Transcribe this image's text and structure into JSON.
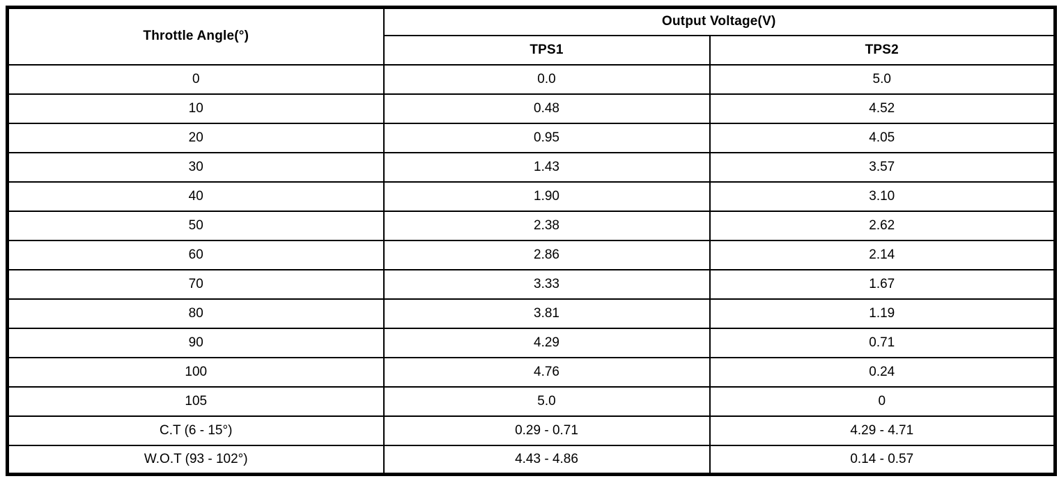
{
  "table": {
    "throttle_angle_header": "Throttle Angle(°)",
    "output_voltage_header": "Output Voltage(V)",
    "sub_headers": [
      "TPS1",
      "TPS2"
    ],
    "rows": [
      {
        "angle": "0",
        "tps1": "0.0",
        "tps2": "5.0"
      },
      {
        "angle": "10",
        "tps1": "0.48",
        "tps2": "4.52"
      },
      {
        "angle": "20",
        "tps1": "0.95",
        "tps2": "4.05"
      },
      {
        "angle": "30",
        "tps1": "1.43",
        "tps2": "3.57"
      },
      {
        "angle": "40",
        "tps1": "1.90",
        "tps2": "3.10"
      },
      {
        "angle": "50",
        "tps1": "2.38",
        "tps2": "2.62"
      },
      {
        "angle": "60",
        "tps1": "2.86",
        "tps2": "2.14"
      },
      {
        "angle": "70",
        "tps1": "3.33",
        "tps2": "1.67"
      },
      {
        "angle": "80",
        "tps1": "3.81",
        "tps2": "1.19"
      },
      {
        "angle": "90",
        "tps1": "4.29",
        "tps2": "0.71"
      },
      {
        "angle": "100",
        "tps1": "4.76",
        "tps2": "0.24"
      },
      {
        "angle": "105",
        "tps1": "5.0",
        "tps2": "0"
      },
      {
        "angle": "C.T (6 - 15°)",
        "tps1": "0.29 - 0.71",
        "tps2": "4.29 - 4.71"
      },
      {
        "angle": "W.O.T (93 - 102°)",
        "tps1": "4.43 - 4.86",
        "tps2": "0.14 - 0.57"
      }
    ]
  }
}
